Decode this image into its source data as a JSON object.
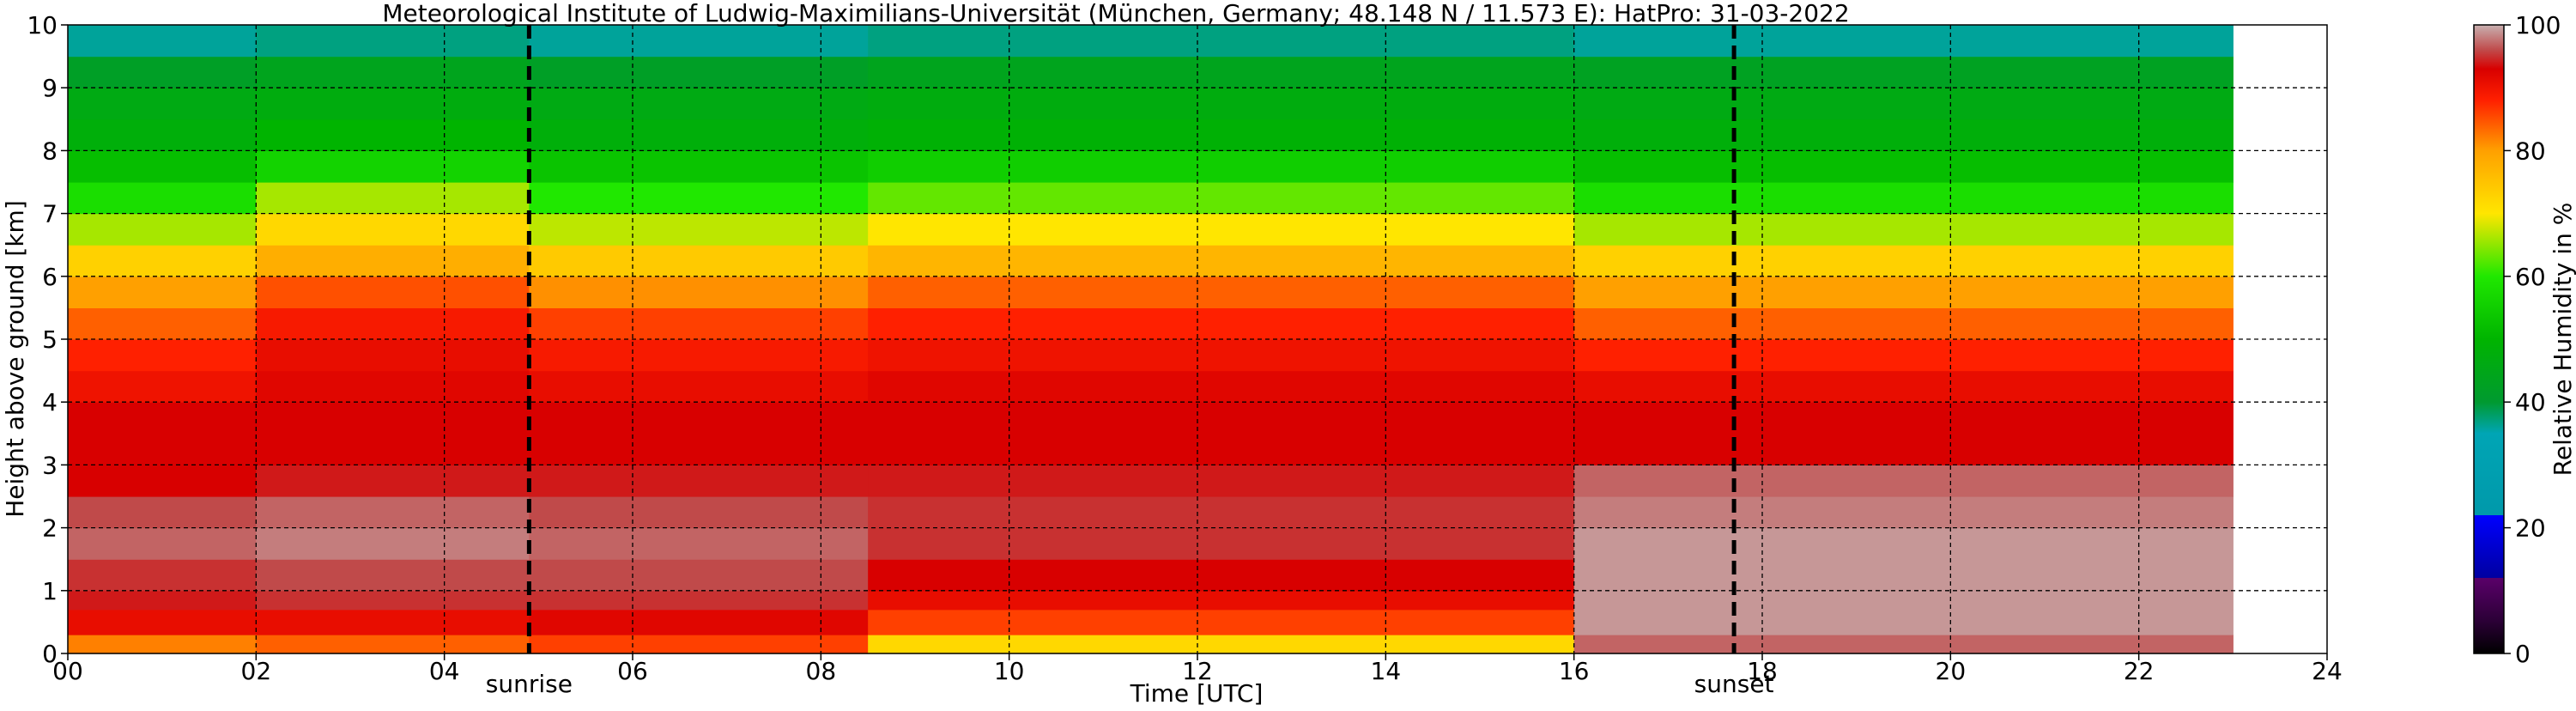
{
  "chart_data": {
    "type": "heatmap",
    "title": "Meteorological Institute of Ludwig-Maximilians-Universität (München, Germany; 48.148 N / 11.573 E):    HatPro: 31-03-2022",
    "xlabel": "Time [UTC]",
    "ylabel": "Height above ground [km]",
    "xlim": [
      0,
      24
    ],
    "ylim": [
      0,
      10
    ],
    "x_ticks": [
      0,
      2,
      4,
      6,
      8,
      10,
      12,
      14,
      16,
      18,
      20,
      22,
      24
    ],
    "x_tick_labels": [
      "00",
      "02",
      "04",
      "06",
      "08",
      "10",
      "12",
      "14",
      "16",
      "18",
      "20",
      "22",
      "24"
    ],
    "y_ticks": [
      0,
      1,
      2,
      3,
      4,
      5,
      6,
      7,
      8,
      9,
      10
    ],
    "y_tick_labels": [
      "0",
      "1",
      "2",
      "3",
      "4",
      "5",
      "6",
      "7",
      "8",
      "9",
      "10"
    ],
    "grid": true,
    "data_end_time": 23,
    "annotations": [
      {
        "label": "sunrise",
        "x": 4.9
      },
      {
        "label": "sunset",
        "x": 17.7
      }
    ],
    "colorbar": {
      "label": "Relative Humidity in %",
      "range": [
        0,
        100
      ],
      "ticks": [
        0,
        20,
        40,
        60,
        80,
        100
      ],
      "tick_labels": [
        "0",
        "20",
        "40",
        "60",
        "80",
        "100"
      ],
      "stops": [
        {
          "value": 0,
          "color": "#000000"
        },
        {
          "value": 5,
          "color": "#2a0035"
        },
        {
          "value": 12,
          "color": "#5a006a"
        },
        {
          "value": 12.01,
          "color": "#0000a0"
        },
        {
          "value": 22,
          "color": "#0000ff"
        },
        {
          "value": 22.01,
          "color": "#0099aa"
        },
        {
          "value": 35,
          "color": "#00a5b5"
        },
        {
          "value": 40,
          "color": "#009a30"
        },
        {
          "value": 50,
          "color": "#00b400"
        },
        {
          "value": 60,
          "color": "#20e800"
        },
        {
          "value": 70,
          "color": "#ffe600"
        },
        {
          "value": 80,
          "color": "#ffa000"
        },
        {
          "value": 88,
          "color": "#ff2000"
        },
        {
          "value": 93,
          "color": "#d80000"
        },
        {
          "value": 96,
          "color": "#c04a4a"
        },
        {
          "value": 100,
          "color": "#c8b0b0"
        }
      ]
    },
    "profile_description": "Relative humidity (%) vs height (km); columns vary with time",
    "height_levels": [
      0,
      0.3,
      0.7,
      1.0,
      1.5,
      2.0,
      2.5,
      3.0,
      3.5,
      4.0,
      4.5,
      5.0,
      5.5,
      6.0,
      6.5,
      7.0,
      7.5,
      8.0,
      8.5,
      9.0,
      9.5,
      10.0
    ],
    "periods": [
      {
        "start": 0.0,
        "end": 2.0,
        "rh": [
          82,
          91,
          94,
          95,
          97,
          96,
          93,
          93,
          93,
          90,
          88,
          84,
          80,
          73,
          66,
          58,
          52,
          48,
          46,
          42,
          36,
          36
        ]
      },
      {
        "start": 2.0,
        "end": 4.9,
        "rh": [
          84,
          91,
          95,
          96,
          98,
          97,
          94,
          93,
          93,
          92,
          91,
          89,
          85,
          78,
          72,
          66,
          56,
          50,
          47,
          44,
          37,
          36
        ]
      },
      {
        "start": 4.9,
        "end": 8.5,
        "rh": [
          86,
          92,
          95,
          96,
          97,
          96,
          94,
          93,
          93,
          91,
          89,
          86,
          81,
          74,
          67,
          60,
          53,
          48,
          46,
          42,
          36,
          36
        ]
      },
      {
        "start": 8.5,
        "end": 16.0,
        "rh": [
          72,
          86,
          91,
          93,
          95,
          95,
          94,
          93,
          93,
          92,
          90,
          88,
          84,
          77,
          70,
          63,
          55,
          49,
          47,
          44,
          37,
          36
        ]
      },
      {
        "start": 16.0,
        "end": 23.0,
        "rh": [
          97,
          99,
          99,
          99,
          99,
          98,
          97,
          93,
          93,
          91,
          88,
          84,
          80,
          73,
          66,
          58,
          52,
          48,
          46,
          43,
          36,
          36
        ]
      }
    ]
  }
}
